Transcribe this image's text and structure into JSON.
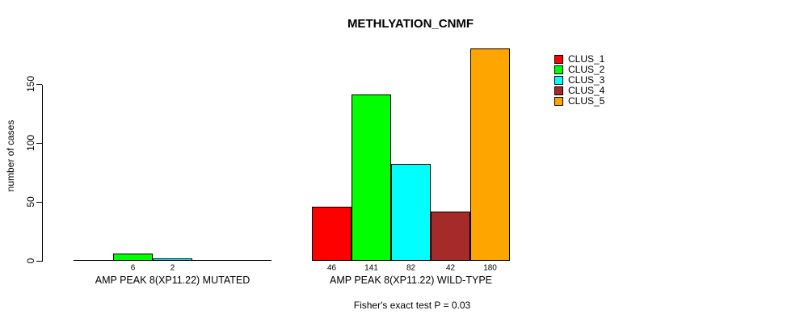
{
  "chart_data": {
    "type": "bar",
    "title": "METHLYATION_CNMF",
    "ylabel": "number of cases",
    "ylim": [
      0,
      180
    ],
    "yticks": [
      0,
      50,
      100,
      150
    ],
    "grid": false,
    "legend_position": "top-right",
    "annotation": "Fisher's exact test P = 0.03",
    "legend": [
      {
        "label": "CLUS_1",
        "color": "#FF0000"
      },
      {
        "label": "CLUS_2",
        "color": "#00FF00"
      },
      {
        "label": "CLUS_3",
        "color": "#00FFFF"
      },
      {
        "label": "CLUS_4",
        "color": "#A52A2A"
      },
      {
        "label": "CLUS_5",
        "color": "#FFA500"
      }
    ],
    "groups": [
      {
        "label": "AMP PEAK 8(XP11.22) MUTATED",
        "values": [
          0,
          6,
          2,
          0,
          0
        ],
        "bar_labels": [
          "",
          "6",
          "2",
          "",
          ""
        ]
      },
      {
        "label": "AMP PEAK 8(XP11.22) WILD-TYPE",
        "values": [
          46,
          141,
          82,
          42,
          180
        ],
        "bar_labels": [
          "46",
          "141",
          "82",
          "42",
          "180"
        ]
      }
    ]
  }
}
